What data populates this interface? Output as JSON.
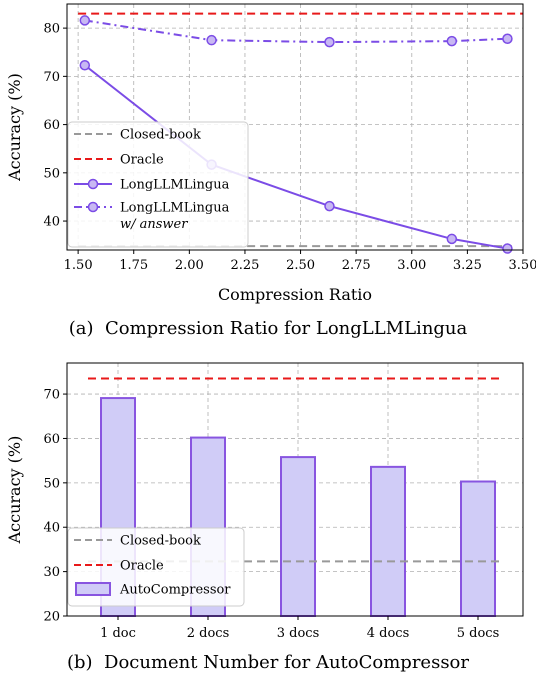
{
  "chart_data": [
    {
      "type": "line",
      "caption": "(a)  Compression Ratio for LongLLMLingua",
      "xlabel": "Compression Ratio",
      "ylabel": "Accuracy (%)",
      "xlim": [
        1.45,
        3.5
      ],
      "ylim": [
        34,
        85
      ],
      "xticks": [
        1.5,
        1.75,
        2.0,
        2.25,
        2.5,
        2.75,
        3.0,
        3.25,
        3.5
      ],
      "xtick_labels": [
        "1.50",
        "1.75",
        "2.00",
        "2.25",
        "2.50",
        "2.75",
        "3.00",
        "3.25",
        "3.50"
      ],
      "yticks": [
        40,
        50,
        60,
        70,
        80
      ],
      "ytick_labels": [
        "40",
        "50",
        "60",
        "70",
        "80"
      ],
      "grid": true,
      "legend_position": "lower-left",
      "series": [
        {
          "name": "Closed-book",
          "style": "dashed",
          "color": "#999999",
          "x": [
            1.5,
            3.45
          ],
          "y": [
            34.8,
            34.8
          ]
        },
        {
          "name": "Oracle",
          "style": "dashed",
          "color": "#e8191a",
          "x": [
            1.5,
            3.5
          ],
          "y": [
            83.0,
            83.0
          ]
        },
        {
          "name": "LongLLMLingua",
          "style": "solid",
          "color": "#7b4ce6",
          "x": [
            1.53,
            2.1,
            2.63,
            3.18,
            3.43
          ],
          "y": [
            72.3,
            51.7,
            43.1,
            36.3,
            34.3
          ]
        },
        {
          "name": "LongLLMLingua",
          "name_suffix": "w/ answer",
          "style": "dashdot",
          "color": "#7b4ce6",
          "x": [
            1.53,
            2.1,
            2.63,
            3.18,
            3.43
          ],
          "y": [
            81.6,
            77.5,
            77.1,
            77.3,
            77.8
          ]
        }
      ]
    },
    {
      "type": "bar",
      "caption": "(b)  Document Number for AutoCompressor",
      "xlabel": "",
      "ylabel": "Accuracy (%)",
      "ylim": [
        20,
        77
      ],
      "yticks": [
        20,
        30,
        40,
        50,
        60,
        70
      ],
      "ytick_labels": [
        "20",
        "30",
        "40",
        "50",
        "60",
        "70"
      ],
      "categories": [
        "1 doc",
        "2 docs",
        "3 docs",
        "4 docs",
        "5 docs"
      ],
      "grid": true,
      "legend_position": "lower-left",
      "series": [
        {
          "name": "AutoCompressor",
          "values": [
            69.1,
            60.2,
            55.8,
            53.6,
            50.3
          ],
          "fill": "#d0ccf7",
          "edge": "#8855e0"
        }
      ],
      "reference_lines": [
        {
          "name": "Closed-book",
          "value": 32.3,
          "color": "#999999"
        },
        {
          "name": "Oracle",
          "value": 73.5,
          "color": "#e8191a"
        }
      ]
    }
  ]
}
